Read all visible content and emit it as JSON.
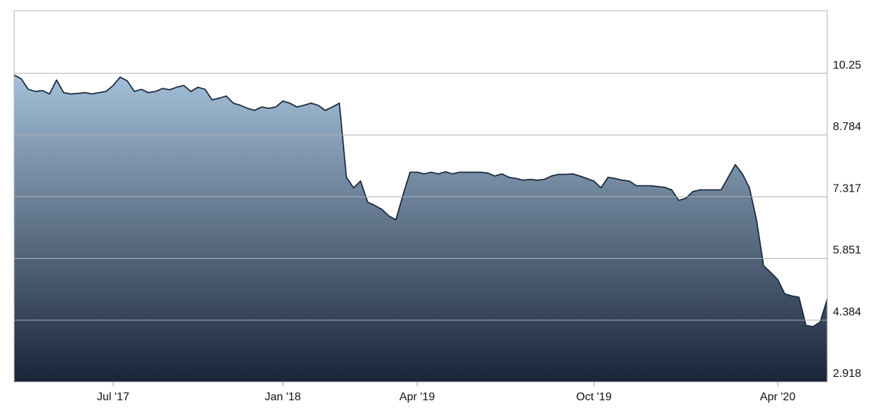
{
  "chart_data": {
    "type": "area",
    "categories": [
      null,
      null,
      null,
      null,
      null,
      null,
      null,
      null,
      null,
      null,
      null,
      null,
      null,
      null,
      "Jul '17",
      null,
      null,
      null,
      null,
      null,
      null,
      null,
      null,
      null,
      null,
      null,
      null,
      null,
      null,
      null,
      null,
      null,
      null,
      null,
      null,
      null,
      null,
      null,
      "Jan '18",
      null,
      null,
      null,
      null,
      null,
      null,
      null,
      null,
      null,
      null,
      null,
      null,
      null,
      null,
      null,
      null,
      null,
      null,
      "Apr '19",
      null,
      null,
      null,
      null,
      null,
      null,
      null,
      null,
      null,
      null,
      null,
      null,
      null,
      null,
      null,
      null,
      null,
      null,
      null,
      null,
      null,
      null,
      null,
      null,
      "Oct '19",
      null,
      null,
      null,
      null,
      null,
      null,
      null,
      null,
      null,
      null,
      null,
      null,
      null,
      null,
      null,
      null,
      null,
      null,
      null,
      null,
      null,
      null,
      null,
      null,
      null,
      "Apr '20",
      null,
      null,
      null,
      null,
      null,
      null,
      null
    ],
    "values": [
      10.21,
      10.12,
      9.87,
      9.82,
      9.84,
      9.76,
      10.09,
      9.79,
      9.76,
      9.77,
      9.79,
      9.76,
      9.79,
      9.82,
      9.96,
      10.16,
      10.07,
      9.82,
      9.87,
      9.79,
      9.82,
      9.89,
      9.86,
      9.92,
      9.96,
      9.82,
      9.92,
      9.87,
      9.62,
      9.66,
      9.71,
      9.54,
      9.49,
      9.42,
      9.37,
      9.45,
      9.42,
      9.45,
      9.59,
      9.54,
      9.45,
      9.49,
      9.54,
      9.49,
      9.37,
      9.45,
      9.54,
      7.78,
      7.53,
      7.69,
      7.19,
      7.11,
      7.02,
      6.86,
      6.77,
      7.36,
      7.9,
      7.9,
      7.86,
      7.9,
      7.86,
      7.91,
      7.86,
      7.9,
      7.9,
      7.9,
      7.9,
      7.88,
      7.81,
      7.86,
      7.78,
      7.75,
      7.71,
      7.73,
      7.71,
      7.73,
      7.81,
      7.85,
      7.85,
      7.86,
      7.81,
      7.75,
      7.69,
      7.53,
      7.78,
      7.75,
      7.71,
      7.69,
      7.58,
      7.58,
      7.58,
      7.56,
      7.54,
      7.48,
      7.23,
      7.28,
      7.44,
      7.48,
      7.48,
      7.48,
      7.48,
      7.78,
      8.08,
      7.86,
      7.53,
      6.77,
      5.68,
      5.52,
      5.35,
      5.01,
      4.96,
      4.93,
      4.26,
      4.23,
      4.34,
      4.88
    ],
    "color": "#1c2b40",
    "gradient": [
      "#a3c0d8",
      "#1a2438"
    ],
    "ylim": [
      2.918,
      11.74
    ],
    "yticks": [
      2.918,
      4.384,
      5.851,
      7.317,
      8.784,
      10.25
    ],
    "grid": true
  }
}
